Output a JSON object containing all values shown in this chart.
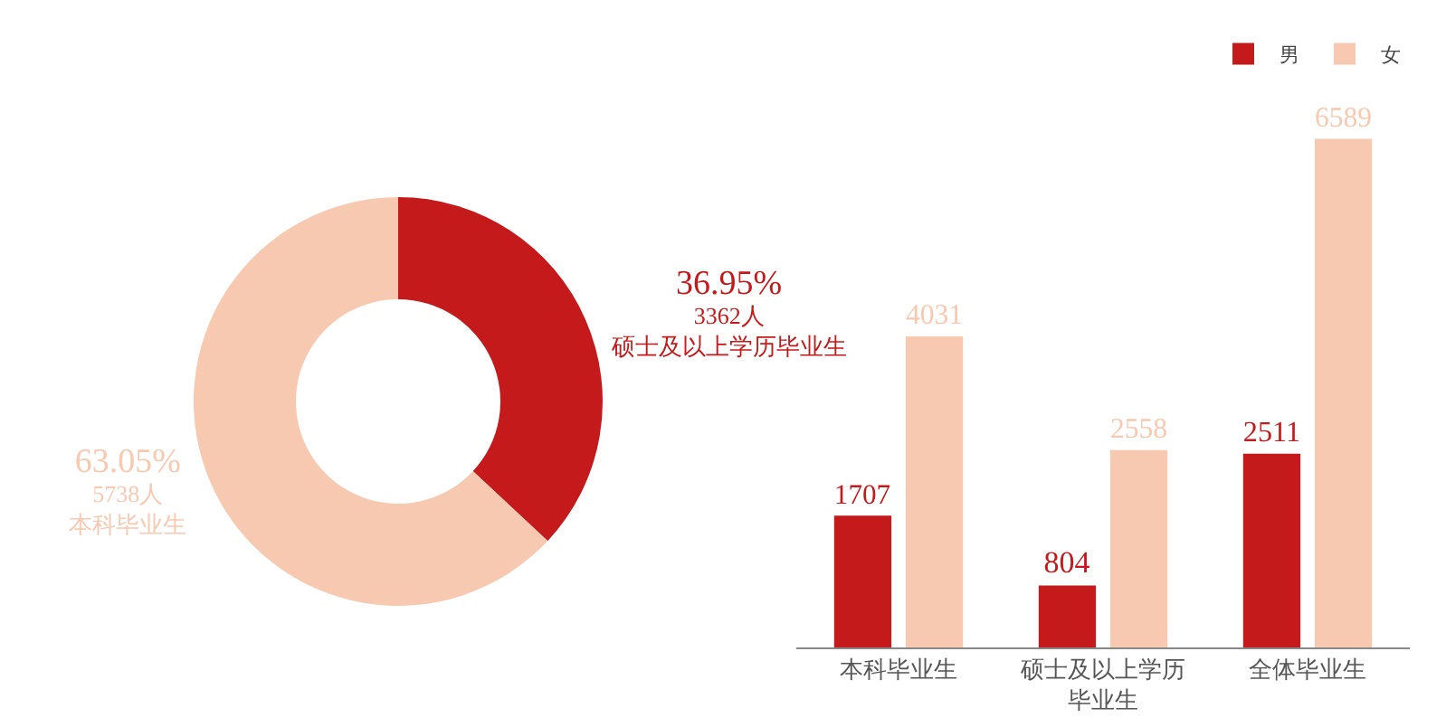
{
  "chart_data": [
    {
      "type": "donut",
      "categories": [
        "硕士及以上学历毕业生",
        "本科毕业生"
      ],
      "values": [
        3362,
        5738
      ],
      "colors": [
        "#c41a1b",
        "#f7c9b0"
      ],
      "value_labels": [
        "36.95%\n3362人",
        "63.05%\n5738人"
      ],
      "legend": false
    },
    {
      "type": "bar",
      "categories": [
        "本科毕业生",
        "硕士及以上学历毕业生",
        "全体毕业生"
      ],
      "series": [
        {
          "name": "男",
          "color": "#c41a1b",
          "values": [
            1707,
            804,
            2511
          ]
        },
        {
          "name": "女",
          "color": "#f7c9b0",
          "values": [
            4031,
            2558,
            6589
          ]
        }
      ],
      "data_labels": true,
      "legend": "top right"
    }
  ]
}
